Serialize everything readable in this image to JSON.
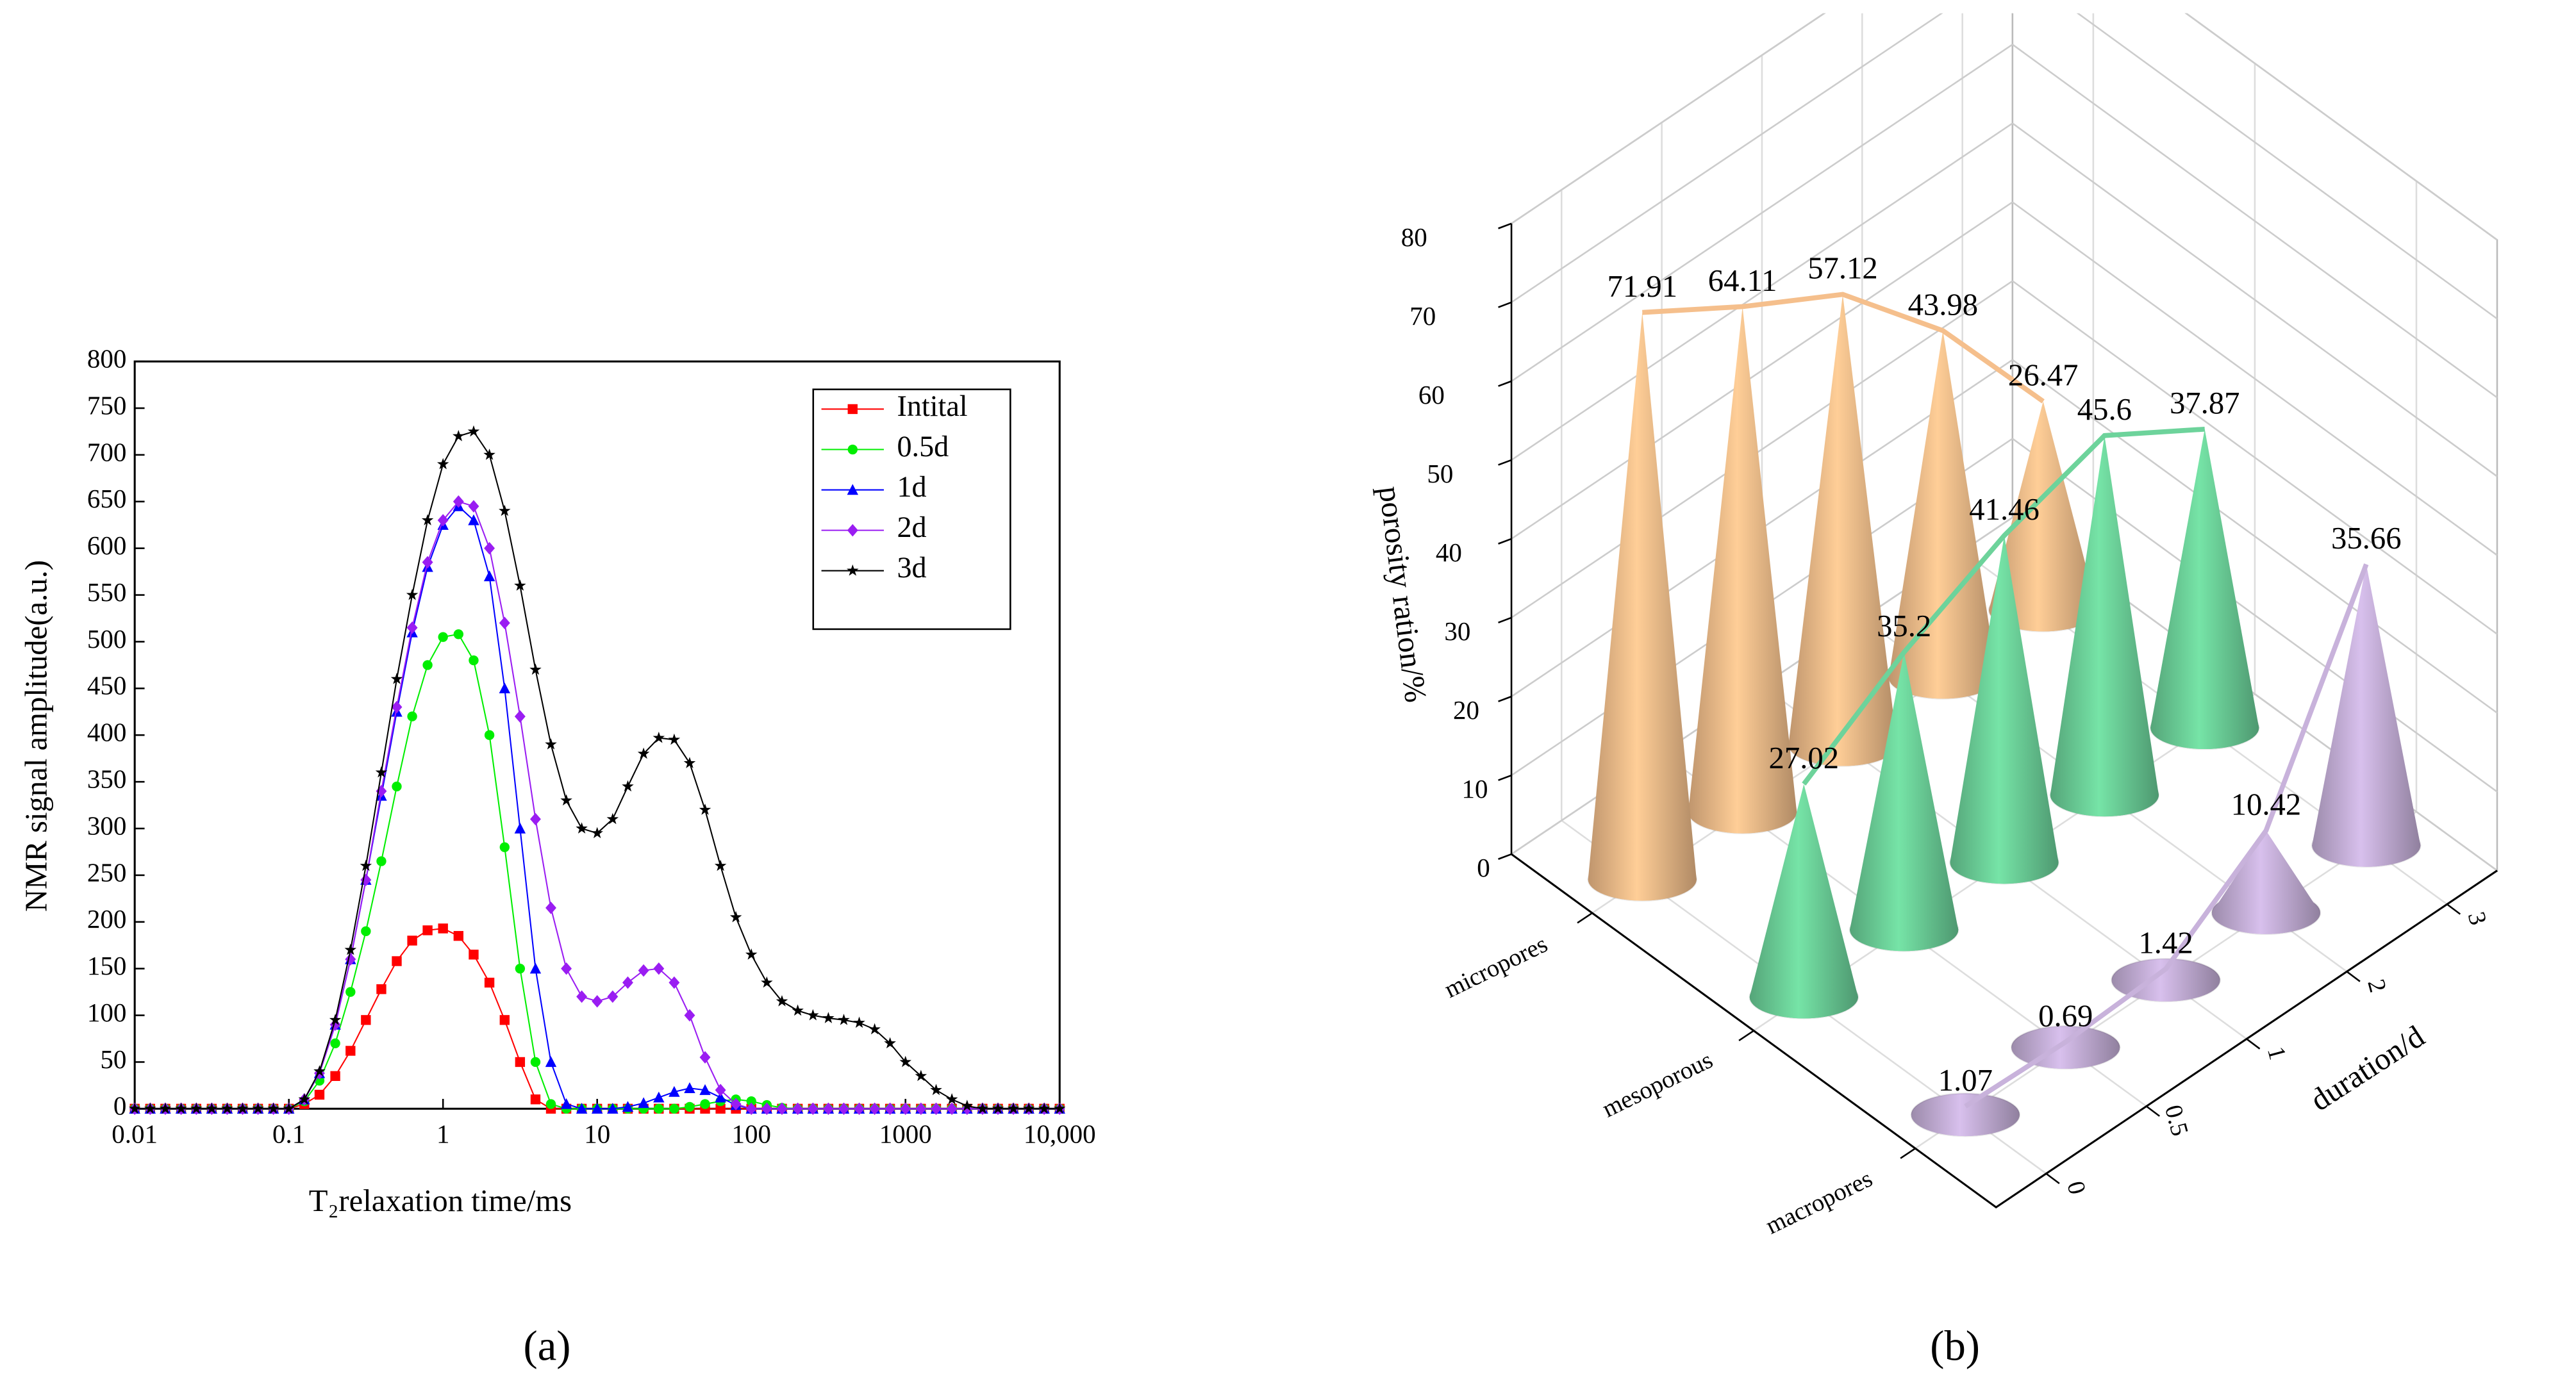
{
  "chart_data": [
    {
      "type": "line",
      "panel_label": "(a)",
      "xlabel": "T₂relaxation time/ms",
      "ylabel": "NMR signal amplitude(a.u.)",
      "xscale": "log",
      "xlim": [
        0.01,
        10000
      ],
      "ylim": [
        0,
        800
      ],
      "xticks": [
        0.01,
        0.1,
        1,
        10,
        100,
        1000,
        {
          "value": 10000,
          "label": "10,000"
        }
      ],
      "yticks": [
        0,
        50,
        100,
        150,
        200,
        250,
        300,
        350,
        400,
        450,
        500,
        550,
        600,
        650,
        700,
        750,
        800
      ],
      "legend": "upper right",
      "x": [
        0.01,
        0.0126,
        0.0158,
        0.02,
        0.0251,
        0.0316,
        0.0398,
        0.0501,
        0.0631,
        0.0794,
        0.1,
        0.126,
        0.158,
        0.2,
        0.251,
        0.316,
        0.398,
        0.501,
        0.631,
        0.794,
        1,
        1.26,
        1.58,
        2,
        2.51,
        3.16,
        3.98,
        5.01,
        6.31,
        7.94,
        10,
        12.6,
        15.8,
        20,
        25.1,
        31.6,
        39.8,
        50.1,
        63.1,
        79.4,
        100,
        126,
        158,
        200,
        251,
        316,
        398,
        501,
        631,
        794,
        1000,
        1260,
        1580,
        2000,
        2510,
        3160,
        3980,
        5010,
        6310,
        7940,
        10000
      ],
      "series": [
        {
          "name": "Intital",
          "color": "#ff0000",
          "marker": "square",
          "values": [
            0,
            0,
            0,
            0,
            0,
            0,
            0,
            0,
            0,
            0,
            0,
            5,
            15,
            35,
            62,
            95,
            128,
            158,
            180,
            191,
            193,
            185,
            165,
            135,
            95,
            50,
            10,
            0,
            0,
            0,
            0,
            0,
            0,
            0,
            0,
            0,
            0,
            0,
            0,
            0,
            0,
            0,
            0,
            0,
            0,
            0,
            0,
            0,
            0,
            0,
            0,
            0,
            0,
            0,
            0,
            0,
            0,
            0,
            0,
            0,
            0
          ]
        },
        {
          "name": "0.5d",
          "color": "#00ee00",
          "marker": "circle",
          "values": [
            0,
            0,
            0,
            0,
            0,
            0,
            0,
            0,
            0,
            0,
            0,
            8,
            30,
            70,
            125,
            190,
            265,
            345,
            420,
            475,
            505,
            508,
            480,
            400,
            280,
            150,
            50,
            5,
            0,
            0,
            0,
            0,
            0,
            0,
            0,
            0,
            2,
            5,
            8,
            10,
            8,
            4,
            1,
            0,
            0,
            0,
            0,
            0,
            0,
            0,
            0,
            0,
            0,
            0,
            0,
            0,
            0,
            0,
            0,
            0,
            0
          ]
        },
        {
          "name": "1d",
          "color": "#0000ff",
          "marker": "triangle",
          "values": [
            0,
            0,
            0,
            0,
            0,
            0,
            0,
            0,
            0,
            0,
            0,
            10,
            38,
            90,
            160,
            245,
            335,
            425,
            510,
            580,
            625,
            645,
            630,
            570,
            450,
            300,
            150,
            50,
            5,
            0,
            0,
            0,
            2,
            6,
            12,
            18,
            22,
            20,
            12,
            4,
            0,
            0,
            0,
            0,
            0,
            0,
            0,
            0,
            0,
            0,
            0,
            0,
            0,
            0,
            0,
            0,
            0,
            0,
            0,
            0,
            0
          ]
        },
        {
          "name": "2d",
          "color": "#9a1df2",
          "marker": "diamond",
          "values": [
            0,
            0,
            0,
            0,
            0,
            0,
            0,
            0,
            0,
            0,
            0,
            10,
            38,
            90,
            160,
            245,
            340,
            430,
            515,
            585,
            630,
            650,
            645,
            600,
            520,
            420,
            310,
            215,
            150,
            120,
            115,
            120,
            135,
            148,
            150,
            135,
            100,
            55,
            20,
            5,
            0,
            0,
            0,
            0,
            0,
            0,
            0,
            0,
            0,
            0,
            0,
            0,
            0,
            0,
            0,
            0,
            0,
            0,
            0,
            0,
            0
          ]
        },
        {
          "name": "3d",
          "color": "#000000",
          "marker": "star",
          "values": [
            0,
            0,
            0,
            0,
            0,
            0,
            0,
            0,
            0,
            0,
            0,
            10,
            40,
            95,
            170,
            260,
            360,
            460,
            550,
            630,
            690,
            720,
            725,
            700,
            640,
            560,
            470,
            390,
            330,
            300,
            295,
            310,
            345,
            380,
            397,
            395,
            370,
            320,
            260,
            205,
            165,
            135,
            115,
            105,
            100,
            97,
            95,
            92,
            85,
            70,
            50,
            35,
            20,
            10,
            3,
            0,
            0,
            0,
            0,
            0,
            0
          ]
        }
      ]
    },
    {
      "type": "cone3d",
      "panel_label": "(b)",
      "zlabel": "porosity ration/%",
      "xlabel": "duration/d",
      "zlim": [
        0,
        80
      ],
      "zticks": [
        0,
        10,
        20,
        30,
        40,
        50,
        60,
        70,
        80
      ],
      "categories": [
        "0",
        "0.5",
        "1",
        "2",
        "3"
      ],
      "series": [
        {
          "name": "micropores",
          "color": "#f5bf8c",
          "values": [
            71.91,
            64.11,
            57.12,
            43.98,
            26.47
          ]
        },
        {
          "name": "mesoporous",
          "color": "#6dd39b",
          "values": [
            27.02,
            35.2,
            41.46,
            45.6,
            37.87
          ]
        },
        {
          "name": "macropores",
          "color": "#c8b2db",
          "values": [
            1.07,
            0.69,
            1.42,
            10.42,
            35.66
          ]
        }
      ]
    }
  ]
}
